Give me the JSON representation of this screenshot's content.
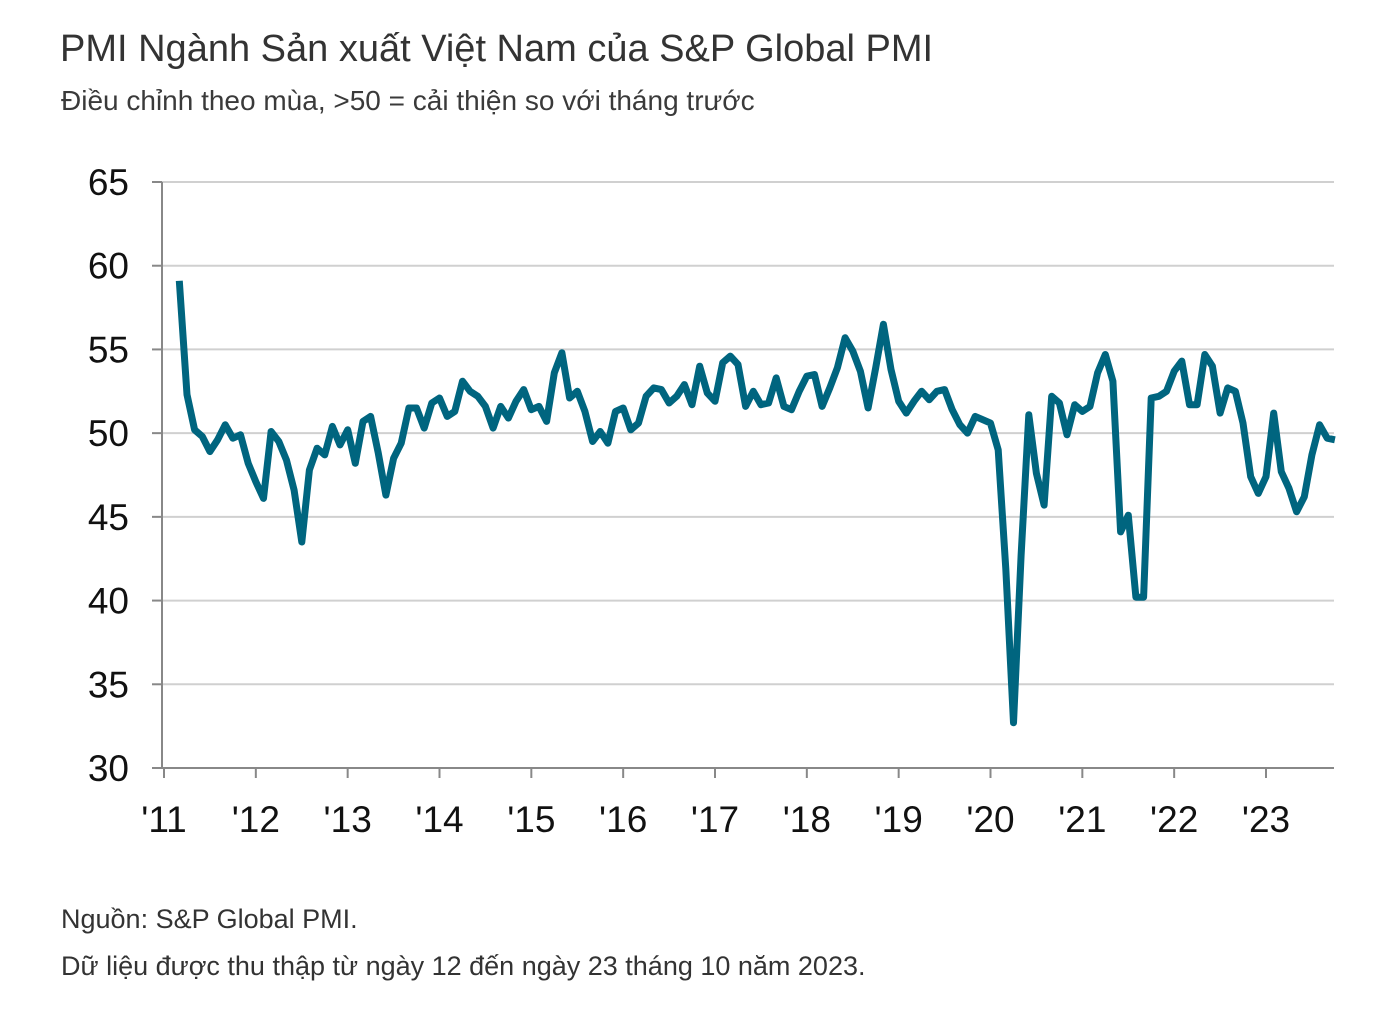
{
  "title": "PMI Ngành Sản xuất Việt Nam của S&P Global PMI",
  "subtitle": "Điều chỉnh theo mùa, >50 = cải thiện so với tháng trước",
  "footer": {
    "source": "Nguồn: S&P Global PMI.",
    "note": "Dữ liệu được thu thập từ ngày 12 đến ngày 23 tháng 10 năm 2023."
  },
  "colors": {
    "line": "#00657f",
    "grid": "#d0d0d0",
    "axis": "#888888"
  },
  "chart_data": {
    "type": "line",
    "title": "PMI Ngành Sản xuất Việt Nam của S&P Global PMI",
    "subtitle": "Điều chỉnh theo mùa, >50 = cải thiện so với tháng trước",
    "xlabel": "",
    "ylabel": "",
    "ylim": [
      30,
      65
    ],
    "yticks": [
      "65",
      "60",
      "55",
      "50",
      "45",
      "40",
      "35",
      "30"
    ],
    "xticks": [
      "'11",
      "'12",
      "'13",
      "'14",
      "'15",
      "'16",
      "'17",
      "'18",
      "'19",
      "'20",
      "'21",
      "'22",
      "'23"
    ],
    "grid": true,
    "legend": "none",
    "start": "2011-03",
    "end": "2023-10",
    "x": [
      "2011-03",
      "2011-04",
      "2011-05",
      "2011-06",
      "2011-07",
      "2011-08",
      "2011-09",
      "2011-10",
      "2011-11",
      "2011-12",
      "2012-01",
      "2012-02",
      "2012-03",
      "2012-04",
      "2012-05",
      "2012-06",
      "2012-07",
      "2012-08",
      "2012-09",
      "2012-10",
      "2012-11",
      "2012-12",
      "2013-01",
      "2013-02",
      "2013-03",
      "2013-04",
      "2013-05",
      "2013-06",
      "2013-07",
      "2013-08",
      "2013-09",
      "2013-10",
      "2013-11",
      "2013-12",
      "2014-01",
      "2014-02",
      "2014-03",
      "2014-04",
      "2014-05",
      "2014-06",
      "2014-07",
      "2014-08",
      "2014-09",
      "2014-10",
      "2014-11",
      "2014-12",
      "2015-01",
      "2015-02",
      "2015-03",
      "2015-04",
      "2015-05",
      "2015-06",
      "2015-07",
      "2015-08",
      "2015-09",
      "2015-10",
      "2015-11",
      "2015-12",
      "2016-01",
      "2016-02",
      "2016-03",
      "2016-04",
      "2016-05",
      "2016-06",
      "2016-07",
      "2016-08",
      "2016-09",
      "2016-10",
      "2016-11",
      "2016-12",
      "2017-01",
      "2017-02",
      "2017-03",
      "2017-04",
      "2017-05",
      "2017-06",
      "2017-07",
      "2017-08",
      "2017-09",
      "2017-10",
      "2017-11",
      "2017-12",
      "2018-01",
      "2018-02",
      "2018-03",
      "2018-04",
      "2018-05",
      "2018-06",
      "2018-07",
      "2018-08",
      "2018-09",
      "2018-10",
      "2018-11",
      "2018-12",
      "2019-01",
      "2019-02",
      "2019-03",
      "2019-04",
      "2019-05",
      "2019-06",
      "2019-07",
      "2019-08",
      "2019-09",
      "2019-10",
      "2019-11",
      "2019-12",
      "2020-01",
      "2020-02",
      "2020-03",
      "2020-04",
      "2020-05",
      "2020-06",
      "2020-07",
      "2020-08",
      "2020-09",
      "2020-10",
      "2020-11",
      "2020-12",
      "2021-01",
      "2021-02",
      "2021-03",
      "2021-04",
      "2021-05",
      "2021-06",
      "2021-07",
      "2021-08",
      "2021-09",
      "2021-10",
      "2021-11",
      "2021-12",
      "2022-01",
      "2022-02",
      "2022-03",
      "2022-04",
      "2022-05",
      "2022-06",
      "2022-07",
      "2022-08",
      "2022-09",
      "2022-10",
      "2022-11",
      "2022-12",
      "2023-01",
      "2023-02",
      "2023-03",
      "2023-04",
      "2023-05",
      "2023-06",
      "2023-07",
      "2023-08",
      "2023-09",
      "2023-10"
    ],
    "series": [
      {
        "values": [
          59.1,
          52.3,
          50.2,
          49.8,
          48.9,
          49.6,
          50.5,
          49.7,
          49.9,
          48.2,
          47.1,
          46.1,
          50.1,
          49.5,
          48.4,
          46.6,
          43.5,
          47.8,
          49.1,
          48.7,
          50.4,
          49.3,
          50.2,
          48.2,
          50.7,
          51.0,
          48.8,
          46.3,
          48.5,
          49.4,
          51.5,
          51.5,
          50.3,
          51.8,
          52.1,
          51.0,
          51.3,
          53.1,
          52.5,
          52.2,
          51.6,
          50.3,
          51.6,
          50.9,
          51.9,
          52.6,
          51.4,
          51.6,
          50.7,
          53.6,
          54.8,
          52.1,
          52.5,
          51.3,
          49.5,
          50.1,
          49.4,
          51.3,
          51.5,
          50.2,
          50.6,
          52.2,
          52.7,
          52.6,
          51.8,
          52.2,
          52.9,
          51.7,
          54.0,
          52.4,
          51.9,
          54.2,
          54.6,
          54.1,
          51.6,
          52.5,
          51.7,
          51.8,
          53.3,
          51.6,
          51.4,
          52.5,
          53.4,
          53.5,
          51.6,
          52.7,
          53.9,
          55.7,
          54.9,
          53.7,
          51.5,
          53.9,
          56.5,
          53.8,
          51.9,
          51.2,
          51.9,
          52.5,
          52.0,
          52.5,
          52.6,
          51.4,
          50.5,
          50.0,
          51.0,
          50.8,
          50.6,
          49.0,
          41.9,
          32.7,
          42.7,
          51.1,
          47.6,
          45.7,
          52.2,
          51.8,
          49.9,
          51.7,
          51.3,
          51.6,
          53.6,
          54.7,
          53.1,
          44.1,
          45.1,
          40.2,
          40.2,
          52.1,
          52.2,
          52.5,
          53.7,
          54.3,
          51.7,
          51.7,
          54.7,
          54.0,
          51.2,
          52.7,
          52.5,
          50.6,
          47.4,
          46.4,
          47.4,
          51.2,
          47.7,
          46.7,
          45.3,
          46.2,
          48.7,
          50.5,
          49.7,
          49.6
        ]
      }
    ]
  }
}
